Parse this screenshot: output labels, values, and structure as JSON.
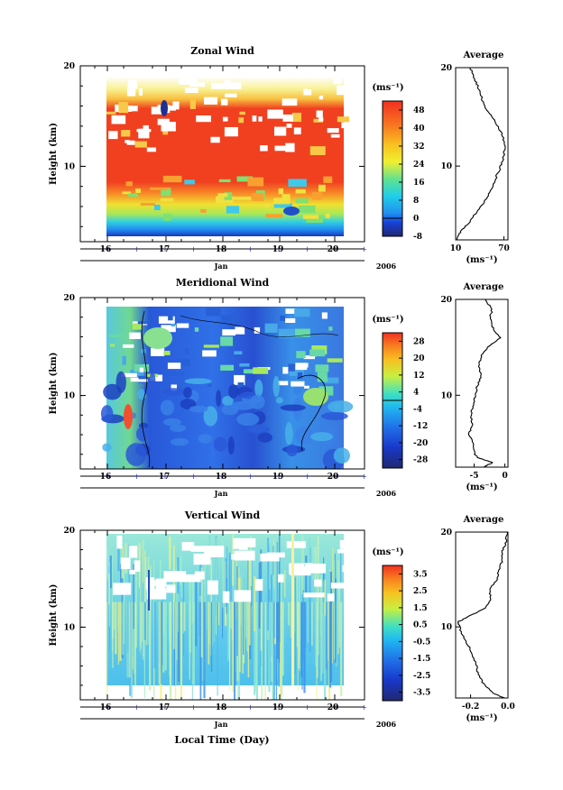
{
  "figure": {
    "xlabel": "Local Time (Day)",
    "month_label": "Jan",
    "year_label": "2006",
    "unit_label": "(ms⁻¹)"
  },
  "chart_data": [
    {
      "type": "heatmap",
      "title": "Zonal Wind",
      "ylabel": "Height (km)",
      "xlabel": "Jan",
      "x_ticks": [
        "16",
        "17",
        "18",
        "19",
        "20"
      ],
      "y_ticks": [
        "20",
        "10"
      ],
      "ylim": [
        2.5,
        20
      ],
      "colorbar": {
        "unit": "(ms⁻¹)",
        "ticks": [
          "48",
          "40",
          "32",
          "24",
          "16",
          "8",
          "0",
          "-8"
        ],
        "range": [
          -8,
          52
        ],
        "zero_line": 0
      },
      "average_profile": {
        "title": "Average",
        "xlabel": "(ms⁻¹)",
        "x_ticks": [
          "10",
          "70"
        ],
        "xlim": [
          10,
          75
        ],
        "y_ticks": [
          "20",
          "10"
        ],
        "heights": [
          2.5,
          3,
          3.5,
          4,
          5,
          6,
          7,
          8,
          9,
          10,
          11,
          12,
          13,
          14,
          15,
          16,
          17,
          18,
          19,
          20
        ],
        "values": [
          12,
          14,
          18,
          24,
          33,
          43,
          50,
          56,
          61,
          66,
          70,
          71,
          69,
          63,
          55,
          47,
          42,
          38,
          33,
          28
        ]
      }
    },
    {
      "type": "heatmap",
      "title": "Meridional Wind",
      "ylabel": "Height (km)",
      "xlabel": "Jan",
      "x_ticks": [
        "16",
        "17",
        "18",
        "19",
        "20"
      ],
      "y_ticks": [
        "20",
        "10"
      ],
      "ylim": [
        2.5,
        20
      ],
      "colorbar": {
        "unit": "(ms⁻¹)",
        "ticks": [
          "28",
          "20",
          "12",
          "4",
          "-4",
          "-12",
          "-20",
          "-28"
        ],
        "range": [
          -32,
          32
        ],
        "zero_line": 0
      },
      "average_profile": {
        "title": "Average",
        "xlabel": "(ms⁻¹)",
        "x_ticks": [
          "-5",
          "0"
        ],
        "xlim": [
          -8,
          0.5
        ],
        "y_ticks": [
          "20",
          "10"
        ],
        "heights": [
          2.5,
          3,
          3.5,
          4,
          5,
          6,
          7,
          8,
          9,
          10,
          11,
          12,
          13,
          14,
          15,
          16,
          17,
          18,
          19,
          20
        ],
        "values": [
          -3.5,
          -2,
          -4.5,
          -5,
          -5.2,
          -5.8,
          -5.3,
          -5.5,
          -5.1,
          -4.8,
          -4.5,
          -3.8,
          -4.2,
          -3.9,
          -2.8,
          -0.8,
          -1.9,
          -2.4,
          -2.1,
          -3.2
        ]
      }
    },
    {
      "type": "heatmap",
      "title": "Vertical Wind",
      "ylabel": "Height (km)",
      "xlabel": "Jan",
      "x_ticks": [
        "16",
        "17",
        "18",
        "19",
        "20"
      ],
      "y_ticks": [
        "20",
        "10"
      ],
      "ylim": [
        2.5,
        20
      ],
      "colorbar": {
        "unit": "(ms⁻¹)",
        "ticks": [
          "3.5",
          "2.5",
          "1.5",
          "0.5",
          "-0.5",
          "-1.5",
          "-2.5",
          "-3.5"
        ],
        "range": [
          -4,
          4
        ]
      },
      "average_profile": {
        "title": "Average",
        "xlabel": "(ms⁻¹)",
        "x_ticks": [
          "-0.2",
          "0.0"
        ],
        "xlim": [
          -0.28,
          0.0
        ],
        "y_ticks": [
          "20",
          "10"
        ],
        "heights": [
          2.5,
          3,
          4,
          5,
          6,
          7,
          8,
          9,
          10,
          10.5,
          11,
          12,
          13,
          14,
          15,
          16,
          17,
          18,
          19,
          20
        ],
        "values": [
          -0.02,
          -0.08,
          -0.13,
          -0.16,
          -0.17,
          -0.19,
          -0.21,
          -0.24,
          -0.26,
          -0.27,
          -0.22,
          -0.12,
          -0.09,
          -0.1,
          -0.06,
          -0.05,
          -0.03,
          -0.03,
          -0.01,
          -0.005
        ]
      }
    }
  ]
}
